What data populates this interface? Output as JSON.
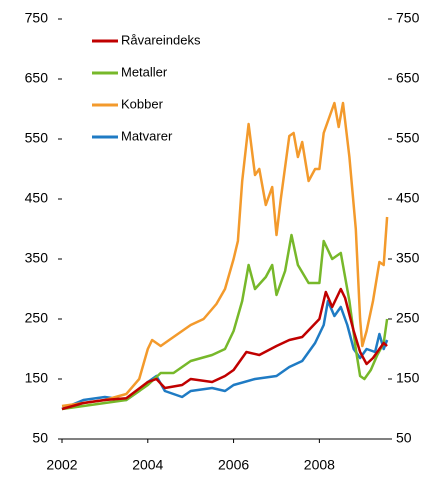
{
  "chart_data": {
    "type": "line",
    "xlim": [
      2002,
      2009.6
    ],
    "xticks": [
      2002,
      2004,
      2006,
      2008
    ],
    "ylim": [
      50,
      750
    ],
    "yticks": [
      50,
      150,
      250,
      350,
      450,
      550,
      650,
      750
    ],
    "y2lim": [
      50,
      750
    ],
    "y2ticks": [
      50,
      150,
      250,
      350,
      450,
      550,
      650,
      750
    ],
    "legend": "upper left",
    "series": [
      {
        "name": "Råvareindeks",
        "color": "#c00000",
        "x": [
          2002,
          2002.5,
          2003,
          2003.5,
          2004,
          2004.2,
          2004.4,
          2004.8,
          2005,
          2005.5,
          2005.8,
          2006,
          2006.3,
          2006.6,
          2007,
          2007.3,
          2007.6,
          2008,
          2008.15,
          2008.3,
          2008.5,
          2008.6,
          2008.8,
          2008.95,
          2009.1,
          2009.25,
          2009.4,
          2009.5,
          2009.58
        ],
        "values": [
          100,
          110,
          115,
          118,
          145,
          150,
          135,
          140,
          150,
          145,
          155,
          165,
          195,
          190,
          205,
          215,
          220,
          250,
          295,
          270,
          300,
          285,
          230,
          195,
          175,
          185,
          200,
          210,
          205
        ]
      },
      {
        "name": "Metaller",
        "color": "#77b82a",
        "x": [
          2002,
          2002.5,
          2003,
          2003.5,
          2004,
          2004.3,
          2004.6,
          2005,
          2005.5,
          2005.8,
          2006,
          2006.2,
          2006.35,
          2006.5,
          2006.75,
          2006.9,
          2007,
          2007.2,
          2007.35,
          2007.5,
          2007.75,
          2008,
          2008.1,
          2008.3,
          2008.5,
          2008.7,
          2008.85,
          2008.95,
          2009.05,
          2009.2,
          2009.35,
          2009.5,
          2009.58
        ],
        "values": [
          100,
          105,
          110,
          115,
          140,
          160,
          160,
          180,
          190,
          200,
          230,
          280,
          340,
          300,
          320,
          340,
          290,
          330,
          390,
          340,
          310,
          310,
          380,
          350,
          360,
          280,
          200,
          155,
          150,
          165,
          190,
          210,
          250
        ]
      },
      {
        "name": "Kobber",
        "color": "#f39a2c",
        "x": [
          2002,
          2002.5,
          2003,
          2003.5,
          2003.8,
          2004,
          2004.1,
          2004.3,
          2004.5,
          2004.8,
          2005,
          2005.3,
          2005.6,
          2005.8,
          2006,
          2006.1,
          2006.2,
          2006.35,
          2006.5,
          2006.6,
          2006.75,
          2006.9,
          2007,
          2007.1,
          2007.3,
          2007.4,
          2007.5,
          2007.6,
          2007.75,
          2007.9,
          2008,
          2008.1,
          2008.25,
          2008.35,
          2008.45,
          2008.55,
          2008.7,
          2008.85,
          2008.95,
          2009,
          2009.1,
          2009.25,
          2009.4,
          2009.5,
          2009.58
        ],
        "values": [
          105,
          110,
          115,
          125,
          150,
          200,
          215,
          205,
          215,
          230,
          240,
          250,
          275,
          300,
          350,
          380,
          480,
          575,
          490,
          500,
          440,
          470,
          390,
          450,
          555,
          560,
          520,
          545,
          480,
          500,
          500,
          560,
          590,
          610,
          570,
          610,
          520,
          400,
          250,
          205,
          230,
          280,
          345,
          340,
          420
        ]
      },
      {
        "name": "Matvarer",
        "color": "#1f7bc4",
        "x": [
          2002,
          2002.5,
          2003,
          2003.5,
          2003.8,
          2004,
          2004.2,
          2004.4,
          2004.6,
          2004.8,
          2005,
          2005.5,
          2005.8,
          2006,
          2006.5,
          2007,
          2007.3,
          2007.6,
          2007.9,
          2008.1,
          2008.2,
          2008.35,
          2008.5,
          2008.65,
          2008.8,
          2008.95,
          2009.1,
          2009.3,
          2009.4,
          2009.5,
          2009.58
        ],
        "values": [
          100,
          115,
          120,
          115,
          130,
          145,
          155,
          130,
          125,
          120,
          130,
          135,
          130,
          140,
          150,
          155,
          170,
          180,
          210,
          240,
          280,
          255,
          270,
          240,
          200,
          185,
          200,
          195,
          225,
          200,
          215
        ]
      }
    ]
  }
}
